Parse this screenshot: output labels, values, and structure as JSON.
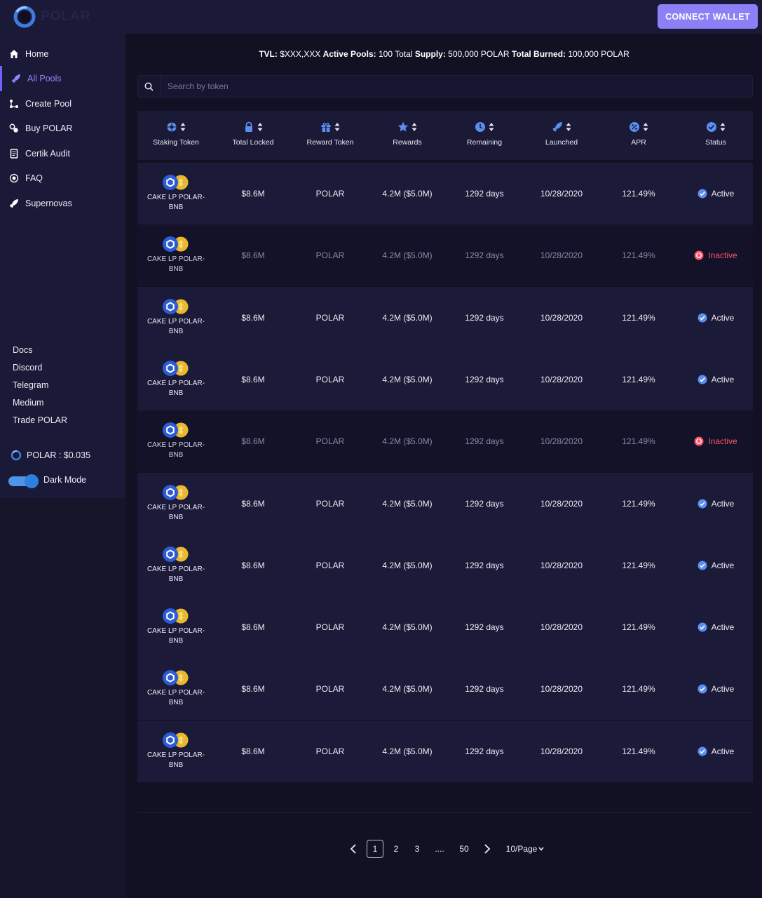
{
  "header": {
    "logo_text": "POLAR",
    "connect_button": "CONNECT WALLET"
  },
  "sidebar": {
    "items": [
      {
        "label": "Home",
        "icon": "home-icon"
      },
      {
        "label": "All Pools",
        "icon": "rocket-icon"
      },
      {
        "label": "Create Pool",
        "icon": "nodes-icon"
      },
      {
        "label": "Buy POLAR",
        "icon": "coins-icon"
      },
      {
        "label": "Certik Audit",
        "icon": "document-icon"
      },
      {
        "label": "FAQ",
        "icon": "help-circle-icon"
      },
      {
        "label": "Supernovas",
        "icon": "rocket-icon"
      }
    ],
    "links": [
      "Docs",
      "Discord",
      "Telegram",
      "Medium",
      "Trade POLAR"
    ],
    "price": "POLAR : $0.035",
    "dark_mode_label": "Dark Mode"
  },
  "stats": {
    "tvl_label": "TVL:",
    "tvl_value": "$XXX,XXX",
    "pools_label": "Active Pools:",
    "pools_value": "100",
    "total_word": "Total",
    "supply_label": "Supply:",
    "supply_value": "500,000 POLAR",
    "burned_label": "Total Burned:",
    "burned_value": "100,000 POLAR"
  },
  "search": {
    "placeholder": "Search by token"
  },
  "table": {
    "columns": [
      {
        "label": "Staking Token",
        "icon": "globe-icon"
      },
      {
        "label": "Total Locked",
        "icon": "lock-icon"
      },
      {
        "label": "Reward Token",
        "icon": "gift-icon"
      },
      {
        "label": "Rewards",
        "icon": "star-icon"
      },
      {
        "label": "Remaining",
        "icon": "clock-icon"
      },
      {
        "label": "Launched",
        "icon": "rocket-icon"
      },
      {
        "label": "APR",
        "icon": "percent-icon"
      },
      {
        "label": "Status",
        "icon": "check-circle-icon"
      }
    ],
    "rows": [
      {
        "token": "CAKE LP POLAR-BNB",
        "locked": "$8.6M",
        "reward_token": "POLAR",
        "rewards": "4.2M ($5.0M)",
        "remaining": "1292 days",
        "launched": "10/28/2020",
        "apr": "121.49%",
        "status": "Active"
      },
      {
        "token": "CAKE LP POLAR-BNB",
        "locked": "$8.6M",
        "reward_token": "POLAR",
        "rewards": "4.2M ($5.0M)",
        "remaining": "1292 days",
        "launched": "10/28/2020",
        "apr": "121.49%",
        "status": "Inactive"
      },
      {
        "token": "CAKE LP POLAR-BNB",
        "locked": "$8.6M",
        "reward_token": "POLAR",
        "rewards": "4.2M ($5.0M)",
        "remaining": "1292 days",
        "launched": "10/28/2020",
        "apr": "121.49%",
        "status": "Active"
      },
      {
        "token": "CAKE LP POLAR-BNB",
        "locked": "$8.6M",
        "reward_token": "POLAR",
        "rewards": "4.2M ($5.0M)",
        "remaining": "1292 days",
        "launched": "10/28/2020",
        "apr": "121.49%",
        "status": "Active"
      },
      {
        "token": "CAKE LP POLAR-BNB",
        "locked": "$8.6M",
        "reward_token": "POLAR",
        "rewards": "4.2M ($5.0M)",
        "remaining": "1292 days",
        "launched": "10/28/2020",
        "apr": "121.49%",
        "status": "Inactive"
      },
      {
        "token": "CAKE LP POLAR-BNB",
        "locked": "$8.6M",
        "reward_token": "POLAR",
        "rewards": "4.2M ($5.0M)",
        "remaining": "1292 days",
        "launched": "10/28/2020",
        "apr": "121.49%",
        "status": "Active"
      },
      {
        "token": "CAKE LP POLAR-BNB",
        "locked": "$8.6M",
        "reward_token": "POLAR",
        "rewards": "4.2M ($5.0M)",
        "remaining": "1292 days",
        "launched": "10/28/2020",
        "apr": "121.49%",
        "status": "Active"
      },
      {
        "token": "CAKE LP POLAR-BNB",
        "locked": "$8.6M",
        "reward_token": "POLAR",
        "rewards": "4.2M ($5.0M)",
        "remaining": "1292 days",
        "launched": "10/28/2020",
        "apr": "121.49%",
        "status": "Active"
      },
      {
        "token": "CAKE LP POLAR-BNB",
        "locked": "$8.6M",
        "reward_token": "POLAR",
        "rewards": "4.2M ($5.0M)",
        "remaining": "1292 days",
        "launched": "10/28/2020",
        "apr": "121.49%",
        "status": "Active"
      },
      {
        "token": "CAKE LP POLAR-BNB",
        "locked": "$8.6M",
        "reward_token": "POLAR",
        "rewards": "4.2M ($5.0M)",
        "remaining": "1292 days",
        "launched": "10/28/2020",
        "apr": "121.49%",
        "status": "Active"
      }
    ]
  },
  "pagination": {
    "pages": [
      "1",
      "2",
      "3",
      "....",
      "50"
    ],
    "current": "1",
    "per_page": "10/Page"
  },
  "colors": {
    "accent": "#8b80f5",
    "active_nav": "#8f86ff",
    "inactive_status": "#ff5466",
    "token_blue": "#2b5bd7",
    "token_gold": "#e8b830"
  }
}
